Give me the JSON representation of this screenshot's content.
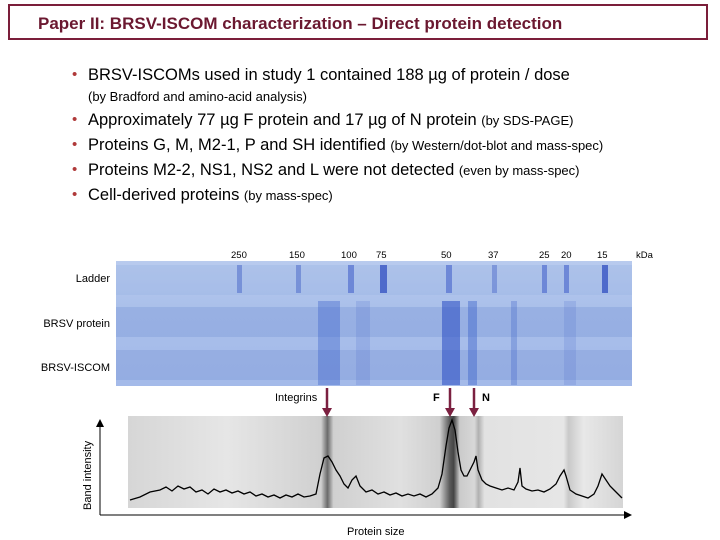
{
  "title": "Paper II: BRSV-ISCOM characterization – Direct protein detection",
  "bullets": [
    {
      "main": "BRSV-ISCOMs used in study 1 contained 188 µg of protein / dose",
      "small": "",
      "subline": "(by Bradford and amino-acid analysis)"
    },
    {
      "main": "Approximately 77 µg F protein and 17 µg of N protein ",
      "small": "(by SDS-PAGE)",
      "subline": ""
    },
    {
      "main": "Proteins G, M, M2-1, P and SH identified ",
      "small": "(by Western/dot-blot and mass-spec)",
      "subline": ""
    },
    {
      "main": "Proteins M2-2, NS1, NS2 and L were not detected ",
      "small": "(even by mass-spec)",
      "subline": ""
    },
    {
      "main": "Cell-derived proteins ",
      "small": "(by mass-spec)",
      "subline": ""
    }
  ],
  "gel": {
    "markers": [
      "250",
      "150",
      "100",
      "75",
      "50",
      "37",
      "25",
      "20",
      "15"
    ],
    "unit": "kDa",
    "lanes": [
      "Ladder",
      "BRSV protein",
      "BRSV-ISCOM"
    ],
    "colors": {
      "gel": "#a9bfea",
      "band": "#3f63c9",
      "arrow": "#7b2040"
    }
  },
  "arrows": {
    "integrins": "Integrins",
    "f": "F",
    "n": "N"
  },
  "densitometry": {
    "ylabel": "Band intensity",
    "xlabel": "Protein size"
  }
}
